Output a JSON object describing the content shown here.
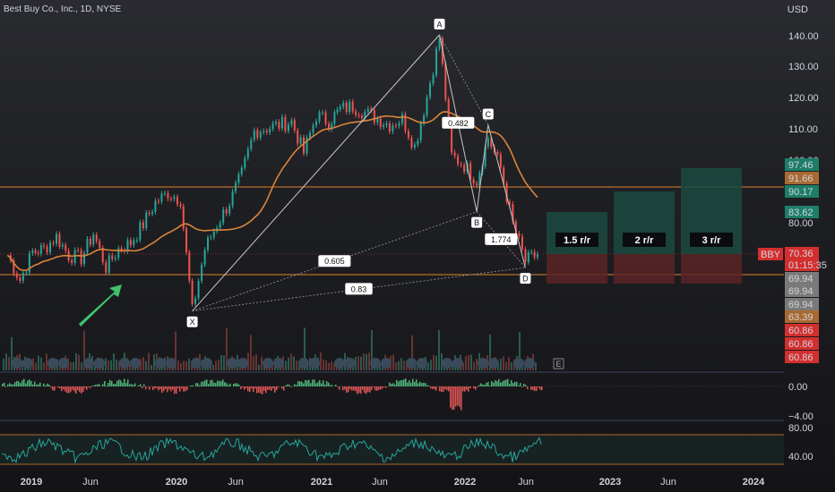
{
  "header": {
    "symbol_title": "Best Buy Co., Inc., 1D, NYSE",
    "currency": "USD"
  },
  "chart_data": {
    "type": "line",
    "title": "Best Buy Co., Inc., 1D, NYSE",
    "y_axis_ticks": [
      "140.00",
      "130.00",
      "120.00",
      "110.00",
      "100.00",
      "80.00"
    ],
    "x_axis_ticks": [
      "2019",
      "Jun",
      "2020",
      "Jun",
      "2021",
      "Jun",
      "2022",
      "Jun",
      "2023",
      "Jun",
      "2024"
    ],
    "ylim": [
      63,
      145
    ],
    "price_series": [
      {
        "date": "2018-12",
        "v": 70
      },
      {
        "date": "2019-01",
        "v": 62
      },
      {
        "date": "2019-02",
        "v": 71
      },
      {
        "date": "2019-03",
        "v": 72
      },
      {
        "date": "2019-04",
        "v": 76
      },
      {
        "date": "2019-05",
        "v": 70
      },
      {
        "date": "2019-06",
        "v": 69
      },
      {
        "date": "2019-07",
        "v": 77
      },
      {
        "date": "2019-08",
        "v": 66
      },
      {
        "date": "2019-09",
        "v": 72
      },
      {
        "date": "2019-10",
        "v": 74
      },
      {
        "date": "2019-11",
        "v": 80
      },
      {
        "date": "2019-12",
        "v": 87
      },
      {
        "date": "2020-01",
        "v": 90
      },
      {
        "date": "2020-02",
        "v": 88
      },
      {
        "date": "2020-03",
        "v": 52
      },
      {
        "date": "2020-04",
        "v": 72
      },
      {
        "date": "2020-05",
        "v": 80
      },
      {
        "date": "2020-06",
        "v": 87
      },
      {
        "date": "2020-07",
        "v": 96
      },
      {
        "date": "2020-08",
        "v": 110
      },
      {
        "date": "2020-09",
        "v": 111
      },
      {
        "date": "2020-10",
        "v": 112
      },
      {
        "date": "2020-11",
        "v": 113
      },
      {
        "date": "2020-12",
        "v": 103
      },
      {
        "date": "2021-01",
        "v": 115
      },
      {
        "date": "2021-02",
        "v": 113
      },
      {
        "date": "2021-03",
        "v": 117
      },
      {
        "date": "2021-04",
        "v": 118
      },
      {
        "date": "2021-05",
        "v": 116
      },
      {
        "date": "2021-06",
        "v": 114
      },
      {
        "date": "2021-07",
        "v": 112
      },
      {
        "date": "2021-08",
        "v": 114
      },
      {
        "date": "2021-09",
        "v": 105
      },
      {
        "date": "2021-10",
        "v": 121
      },
      {
        "date": "2021-11",
        "v": 140
      },
      {
        "date": "2021-12",
        "v": 102
      },
      {
        "date": "2022-01",
        "v": 99
      },
      {
        "date": "2022-02",
        "v": 94
      },
      {
        "date": "2022-03",
        "v": 108
      },
      {
        "date": "2022-04",
        "v": 98
      },
      {
        "date": "2022-05",
        "v": 80
      },
      {
        "date": "2022-06",
        "v": 68
      },
      {
        "date": "2022-07",
        "v": 70.36
      }
    ],
    "harmonic_points": [
      {
        "label": "X",
        "date": "2020-03",
        "v": 52
      },
      {
        "label": "A",
        "date": "2021-11",
        "v": 141
      },
      {
        "label": "B",
        "date": "2022-02",
        "v": 84
      },
      {
        "label": "C",
        "date": "2022-03",
        "v": 112
      },
      {
        "label": "D",
        "date": "2022-06",
        "v": 66
      }
    ],
    "ratios": [
      "0.482",
      "0.605",
      "1.774",
      "0.83"
    ],
    "targets": [
      "1.5 r/r",
      "2 r/r",
      "3 r/r"
    ],
    "price_labels": [
      {
        "text": "97.46",
        "color": "#1e7e68"
      },
      {
        "text": "91.66",
        "color": "#a86a32"
      },
      {
        "text": "90.17",
        "color": "#1e7e68"
      },
      {
        "text": "83.62",
        "color": "#1e7e68"
      },
      {
        "text": "70.36",
        "color": "#d32f2f"
      },
      {
        "text": "01:15:35",
        "color": "#d32f2f"
      },
      {
        "text": "69.94",
        "color": "#7a7a7a"
      },
      {
        "text": "69.94",
        "color": "#7a7a7a"
      },
      {
        "text": "69.94",
        "color": "#7a7a7a"
      },
      {
        "text": "63.39",
        "color": "#a86a32"
      },
      {
        "text": "60.86",
        "color": "#d32f2f"
      },
      {
        "text": "60.86",
        "color": "#d32f2f"
      },
      {
        "text": "60.86",
        "color": "#d32f2f"
      }
    ],
    "ticker_badge": "BBY",
    "oscillator_ticks": [
      "0.00",
      "−4.00"
    ],
    "rsi_ticks": [
      "80.00",
      "40.00"
    ],
    "event_marker": "E"
  }
}
